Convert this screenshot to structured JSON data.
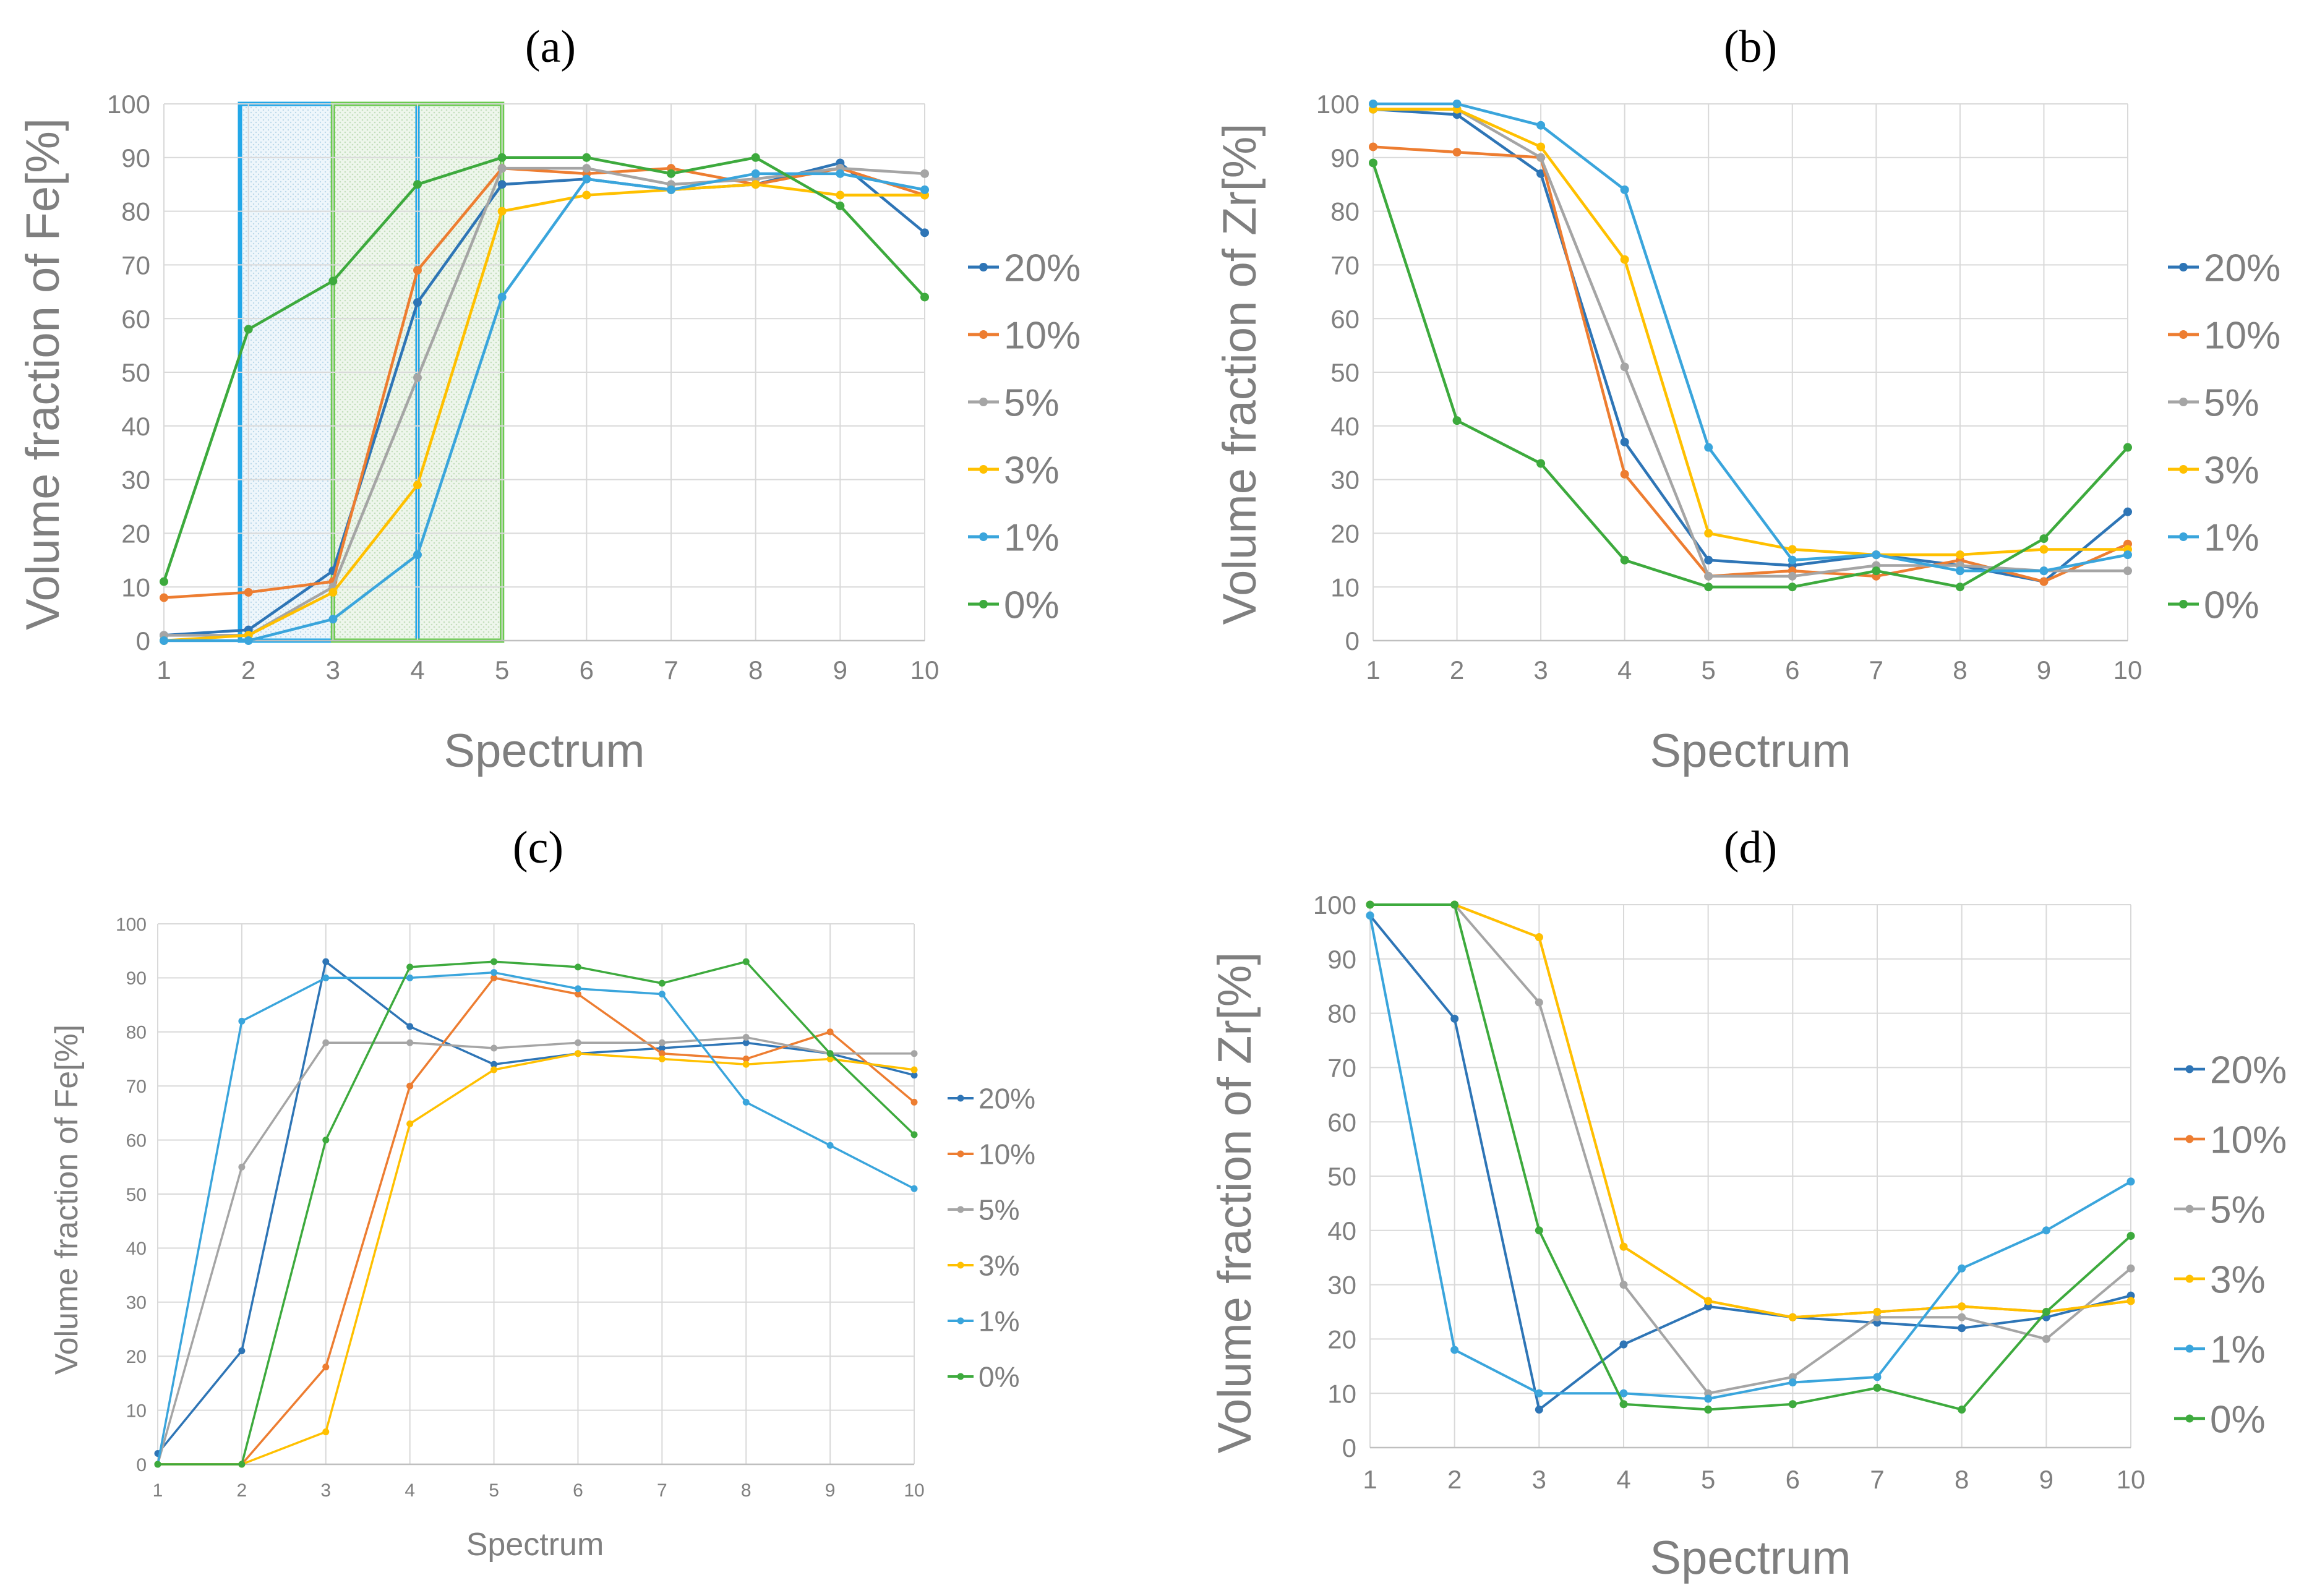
{
  "colors": {
    "20%": "#2E75B6",
    "10%": "#ED7D31",
    "5%": "#A5A5A5",
    "3%": "#FFC000",
    "1%": "#3AA5DC",
    "0%": "#3DAA3D",
    "grid": "#d9d9d9",
    "axis": "#bfbfbf",
    "highlight_blue": "#22A7E8",
    "highlight_green": "#6BCB4F"
  },
  "chart_data": [
    {
      "id": "a",
      "type": "line",
      "panel_label": "(a)",
      "xlabel": "Spectrum",
      "ylabel": "Volume fraction of Fe[%]",
      "x": [
        1,
        2,
        3,
        4,
        5,
        6,
        7,
        8,
        9,
        10
      ],
      "ylim": [
        0,
        100
      ],
      "ytick_step": 10,
      "yticks": [
        "0",
        "10",
        "20",
        "30",
        "40",
        "50",
        "60",
        "70",
        "80",
        "90",
        "100"
      ],
      "xticks": [
        "1",
        "2",
        "3",
        "4",
        "5",
        "6",
        "7",
        "8",
        "9",
        "10"
      ],
      "legend": [
        "20%",
        "10%",
        "5%",
        "3%",
        "1%",
        "0%"
      ],
      "highlights": [
        {
          "name": "blue-highlight-box",
          "x_from": 1.9,
          "x_to": 4.0,
          "y_from": 0,
          "y_to": 100,
          "color": "#22A7E8"
        },
        {
          "name": "green-highlight-box",
          "x_from": 3.0,
          "x_to": 5.0,
          "y_from": 0,
          "y_to": 100,
          "color": "#6BCB4F"
        }
      ],
      "series": [
        {
          "name": "20%",
          "values": [
            1,
            2,
            13,
            63,
            85,
            86,
            84,
            85,
            89,
            76
          ]
        },
        {
          "name": "10%",
          "values": [
            8,
            9,
            11,
            69,
            88,
            87,
            88,
            85,
            88,
            83
          ]
        },
        {
          "name": "5%",
          "values": [
            1,
            1,
            10,
            49,
            88,
            88,
            85,
            86,
            88,
            87
          ]
        },
        {
          "name": "3%",
          "values": [
            0,
            1,
            9,
            29,
            80,
            83,
            84,
            85,
            83,
            83
          ]
        },
        {
          "name": "1%",
          "values": [
            0,
            0,
            4,
            16,
            64,
            86,
            84,
            87,
            87,
            84
          ]
        },
        {
          "name": "0%",
          "values": [
            11,
            58,
            67,
            85,
            90,
            90,
            87,
            90,
            81,
            64
          ]
        }
      ]
    },
    {
      "id": "b",
      "type": "line",
      "panel_label": "(b)",
      "xlabel": "Spectrum",
      "ylabel": "Volume fraction of Zr[%]",
      "x": [
        1,
        2,
        3,
        4,
        5,
        6,
        7,
        8,
        9,
        10
      ],
      "ylim": [
        0,
        100
      ],
      "ytick_step": 10,
      "yticks": [
        "0",
        "10",
        "20",
        "30",
        "40",
        "50",
        "60",
        "70",
        "80",
        "90",
        "100"
      ],
      "xticks": [
        "1",
        "2",
        "3",
        "4",
        "5",
        "6",
        "7",
        "8",
        "9",
        "10"
      ],
      "legend": [
        "20%",
        "10%",
        "5%",
        "3%",
        "1%",
        "0%"
      ],
      "highlights": [],
      "series": [
        {
          "name": "20%",
          "values": [
            99,
            98,
            87,
            37,
            15,
            14,
            16,
            14,
            11,
            24
          ]
        },
        {
          "name": "10%",
          "values": [
            92,
            91,
            90,
            31,
            12,
            13,
            12,
            15,
            11,
            18
          ]
        },
        {
          "name": "5%",
          "values": [
            99,
            99,
            90,
            51,
            12,
            12,
            14,
            14,
            13,
            13
          ]
        },
        {
          "name": "3%",
          "values": [
            99,
            99,
            92,
            71,
            20,
            17,
            16,
            16,
            17,
            17
          ]
        },
        {
          "name": "1%",
          "values": [
            100,
            100,
            96,
            84,
            36,
            15,
            16,
            13,
            13,
            16
          ]
        },
        {
          "name": "0%",
          "values": [
            89,
            41,
            33,
            15,
            10,
            10,
            13,
            10,
            19,
            36
          ]
        }
      ]
    },
    {
      "id": "c",
      "type": "line",
      "panel_label": "(c)",
      "xlabel": "Spectrum",
      "ylabel": "Volume fraction of Fe[%]",
      "x": [
        1,
        2,
        3,
        4,
        5,
        6,
        7,
        8,
        9,
        10
      ],
      "ylim": [
        0,
        100
      ],
      "ytick_step": 10,
      "yticks": [
        "0",
        "10",
        "20",
        "30",
        "40",
        "50",
        "60",
        "70",
        "80",
        "90",
        "100"
      ],
      "xticks": [
        "1",
        "2",
        "3",
        "4",
        "5",
        "6",
        "7",
        "8",
        "9",
        "10"
      ],
      "legend": [
        "20%",
        "10%",
        "5%",
        "3%",
        "1%",
        "0%"
      ],
      "highlights": [],
      "series": [
        {
          "name": "20%",
          "values": [
            2,
            21,
            93,
            81,
            74,
            76,
            77,
            78,
            76,
            72
          ]
        },
        {
          "name": "10%",
          "values": [
            0,
            0,
            18,
            70,
            90,
            87,
            76,
            75,
            80,
            67
          ]
        },
        {
          "name": "5%",
          "values": [
            0,
            55,
            78,
            78,
            77,
            78,
            78,
            79,
            76,
            76
          ]
        },
        {
          "name": "3%",
          "values": [
            0,
            0,
            6,
            63,
            73,
            76,
            75,
            74,
            75,
            73
          ]
        },
        {
          "name": "1%",
          "values": [
            0,
            82,
            90,
            90,
            91,
            88,
            87,
            67,
            59,
            51
          ]
        },
        {
          "name": "0%",
          "values": [
            0,
            0,
            60,
            92,
            93,
            92,
            89,
            93,
            76,
            61
          ]
        }
      ]
    },
    {
      "id": "d",
      "type": "line",
      "panel_label": "(d)",
      "xlabel": "Spectrum",
      "ylabel": "Volume fraction of Zr[%]",
      "x": [
        1,
        2,
        3,
        4,
        5,
        6,
        7,
        8,
        9,
        10
      ],
      "ylim": [
        0,
        100
      ],
      "ytick_step": 10,
      "yticks": [
        "0",
        "10",
        "20",
        "30",
        "40",
        "50",
        "60",
        "70",
        "80",
        "90",
        "100"
      ],
      "xticks": [
        "1",
        "2",
        "3",
        "4",
        "5",
        "6",
        "7",
        "8",
        "9",
        "10"
      ],
      "legend": [
        "20%",
        "10%",
        "5%",
        "3%",
        "1%",
        "0%"
      ],
      "highlights": [],
      "series": [
        {
          "name": "20%",
          "values": [
            98,
            79,
            7,
            19,
            26,
            24,
            23,
            22,
            24,
            28
          ]
        },
        {
          "name": "10%",
          "values": [
            100,
            100,
            94,
            37,
            27,
            24,
            25,
            26,
            25,
            27
          ]
        },
        {
          "name": "5%",
          "values": [
            100,
            100,
            82,
            30,
            10,
            13,
            24,
            24,
            20,
            33
          ]
        },
        {
          "name": "3%",
          "values": [
            100,
            100,
            94,
            37,
            27,
            24,
            25,
            26,
            25,
            27
          ]
        },
        {
          "name": "1%",
          "values": [
            98,
            18,
            10,
            10,
            9,
            12,
            13,
            33,
            40,
            49
          ]
        },
        {
          "name": "0%",
          "values": [
            100,
            100,
            40,
            8,
            7,
            8,
            11,
            7,
            25,
            39
          ]
        }
      ]
    }
  ]
}
